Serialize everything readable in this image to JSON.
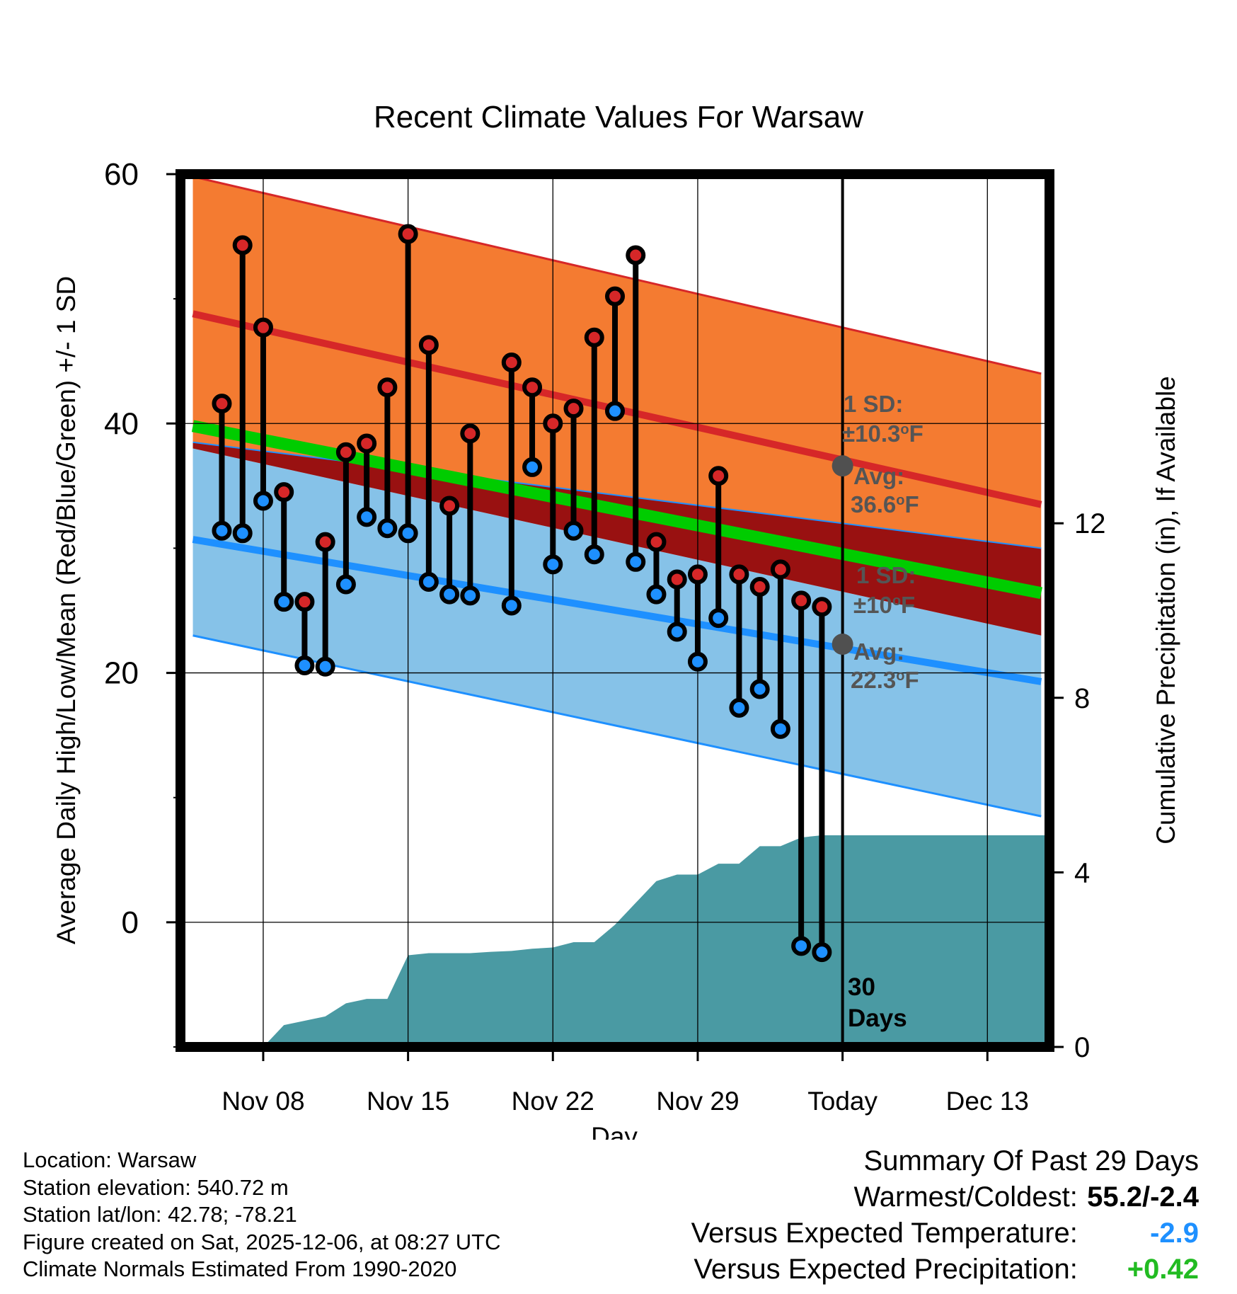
{
  "chart_data": {
    "type": "line",
    "title": "Recent Climate Values For Warsaw",
    "xlabel": "Day",
    "ylabel": "Average Daily High/Low/Mean (Red/Blue/Green) +/- 1 SD",
    "y2label": "Cumulative Precipitation (in), If Available",
    "ylim": [
      -10,
      60
    ],
    "y2lim": [
      0,
      20
    ],
    "xlim": [
      -1,
      41
    ],
    "x_tick_labels": [
      {
        "x": 3,
        "label": "Nov 08"
      },
      {
        "x": 10,
        "label": "Nov 15"
      },
      {
        "x": 17,
        "label": "Nov 22"
      },
      {
        "x": 24,
        "label": "Nov 29"
      },
      {
        "x": 31,
        "label": "Today"
      },
      {
        "x": 38,
        "label": "Dec 13"
      }
    ],
    "y_ticks": [
      0,
      20,
      40,
      60
    ],
    "y2_ticks": [
      0,
      4,
      8,
      12
    ],
    "grid": true,
    "today_x": 31,
    "normals": {
      "x": [
        -0.4,
        40.6
      ],
      "high_mean": [
        48.8,
        33.5
      ],
      "high_upper": [
        59.8,
        44.0
      ],
      "high_lower": [
        38.5,
        30.0
      ],
      "low_mean": [
        30.7,
        19.3
      ],
      "low_upper": [
        38.0,
        23.0
      ],
      "low_lower": [
        23.0,
        8.5
      ],
      "mean": [
        39.8,
        26.4
      ]
    },
    "daily": {
      "x": [
        1,
        2,
        3,
        4,
        5,
        6,
        7,
        8,
        9,
        10,
        11,
        12,
        13,
        14,
        15,
        16,
        17,
        18,
        19,
        20,
        21,
        22,
        23,
        24,
        25,
        26,
        27,
        28,
        29,
        30
      ],
      "high": [
        41.6,
        54.3,
        47.7,
        34.5,
        25.7,
        30.5,
        37.7,
        38.4,
        42.9,
        55.2,
        46.3,
        33.4,
        39.2,
        null,
        44.9,
        42.9,
        40.0,
        41.2,
        46.9,
        50.2,
        53.5,
        30.5,
        27.5,
        27.9,
        35.8,
        27.9,
        26.9,
        28.3,
        25.8,
        25.3
      ],
      "low": [
        31.4,
        31.2,
        33.8,
        25.7,
        20.6,
        20.5,
        27.1,
        32.5,
        31.6,
        31.2,
        27.3,
        26.3,
        26.2,
        null,
        25.4,
        36.5,
        28.7,
        31.4,
        29.5,
        41.0,
        28.9,
        26.3,
        23.3,
        20.9,
        24.4,
        17.2,
        18.7,
        15.5,
        -1.9,
        -2.4
      ]
    },
    "precip_cumulative": {
      "x": [
        3,
        4,
        5,
        6,
        7,
        8,
        9,
        10,
        11,
        12,
        13,
        14,
        15,
        16,
        17,
        18,
        19,
        20,
        21,
        22,
        23,
        24,
        25,
        26,
        27,
        28,
        29,
        30,
        41
      ],
      "values": [
        0.0,
        0.5,
        0.6,
        0.7,
        1.0,
        1.1,
        1.1,
        2.1,
        2.15,
        2.15,
        2.15,
        2.18,
        2.2,
        2.25,
        2.28,
        2.4,
        2.4,
        2.8,
        3.3,
        3.8,
        3.95,
        3.95,
        4.2,
        4.2,
        4.6,
        4.6,
        4.8,
        4.85,
        4.85
      ]
    },
    "annotations": {
      "high_sd_title": "1 SD:",
      "high_sd_value": "±10.3",
      "high_avg_label": "Avg:",
      "high_avg_value": "36.6",
      "high_avg_y": 36.6,
      "low_sd_title": "1 SD:",
      "low_sd_value": "±10",
      "low_avg_label": "Avg:",
      "low_avg_value": "22.3",
      "low_avg_y": 22.3,
      "degree_symbol": "o",
      "unit_letter": "F",
      "days_number": "30",
      "days_word": "Days"
    },
    "colors": {
      "high_band": "#f47b31",
      "high_line": "#d62728",
      "low_band": "#86c2e8",
      "low_line": "#1e90ff",
      "overlap": "#991111",
      "mean_line": "#00cc00",
      "precip": "#4a9aa3",
      "annot": "#555555",
      "high_marker": "#d62728",
      "low_marker": "#1e90ff"
    }
  },
  "info": {
    "location": "Location: Warsaw",
    "elevation": "Station elevation: 540.72 m",
    "latlon": "Station lat/lon: 42.78; -78.21",
    "created": "Figure created on Sat, 2025-12-06, at 08:27 UTC",
    "normals": "Climate Normals Estimated From 1990-2020"
  },
  "summary": {
    "title": "Summary Of Past 29 Days",
    "warm_label": "Warmest/Coldest:",
    "warm_value": "55.2/-2.4",
    "temp_label": "Versus Expected Temperature:",
    "temp_value": "-2.9",
    "temp_color": "#1e90ff",
    "precip_label": "Versus Expected Precipitation:",
    "precip_value": "+0.42",
    "precip_color": "#22bb22"
  }
}
